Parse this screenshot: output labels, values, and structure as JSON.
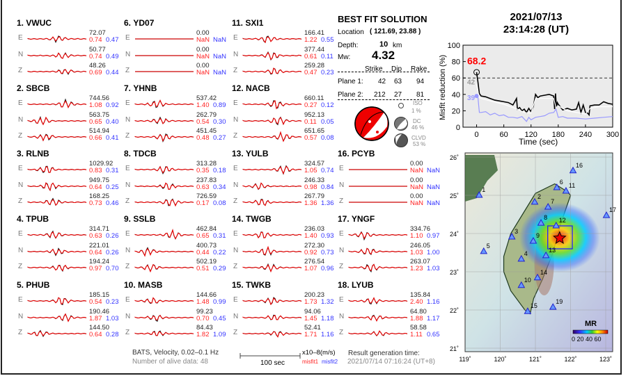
{
  "stations": [
    {
      "num": "1.",
      "name": "VWUC",
      "comps": [
        {
          "c": "E",
          "amp": "72.07",
          "m1": "0.74",
          "m2": "0.47"
        },
        {
          "c": "N",
          "amp": "50.77",
          "m1": "0.74",
          "m2": "0.49"
        },
        {
          "c": "Z",
          "amp": "48.26",
          "m1": "0.69",
          "m2": "0.44"
        }
      ]
    },
    {
      "num": "2.",
      "name": "SBCB",
      "comps": [
        {
          "c": "E",
          "amp": "744.56",
          "m1": "1.08",
          "m2": "0.92"
        },
        {
          "c": "N",
          "amp": "563.75",
          "m1": "0.65",
          "m2": "0.40"
        },
        {
          "c": "Z",
          "amp": "514.94",
          "m1": "0.66",
          "m2": "0.41"
        }
      ]
    },
    {
      "num": "3.",
      "name": "RLNB",
      "comps": [
        {
          "c": "E",
          "amp": "1029.92",
          "m1": "0.83",
          "m2": "0.31"
        },
        {
          "c": "N",
          "amp": "949.75",
          "m1": "0.64",
          "m2": "0.25"
        },
        {
          "c": "Z",
          "amp": "168.25",
          "m1": "0.73",
          "m2": "0.46"
        }
      ]
    },
    {
      "num": "4.",
      "name": "TPUB",
      "comps": [
        {
          "c": "E",
          "amp": "314.71",
          "m1": "0.63",
          "m2": "0.26"
        },
        {
          "c": "N",
          "amp": "221.01",
          "m1": "0.64",
          "m2": "0.26"
        },
        {
          "c": "Z",
          "amp": "194.24",
          "m1": "0.97",
          "m2": "0.70"
        }
      ]
    },
    {
      "num": "5.",
      "name": "PHUB",
      "comps": [
        {
          "c": "E",
          "amp": "185.15",
          "m1": "0.54",
          "m2": "0.23"
        },
        {
          "c": "N",
          "amp": "190.46",
          "m1": "1.87",
          "m2": "1.03"
        },
        {
          "c": "Z",
          "amp": "144.50",
          "m1": "0.64",
          "m2": "0.28"
        }
      ]
    },
    {
      "num": "6.",
      "name": "YD07",
      "comps": [
        {
          "c": "E",
          "amp": "0.00",
          "m1": "NaN",
          "m2": "NaN"
        },
        {
          "c": "N",
          "amp": "0.00",
          "m1": "NaN",
          "m2": "NaN"
        },
        {
          "c": "Z",
          "amp": "0.00",
          "m1": "NaN",
          "m2": "NaN"
        }
      ]
    },
    {
      "num": "7.",
      "name": "YHNB",
      "comps": [
        {
          "c": "E",
          "amp": "537.42",
          "m1": "1.40",
          "m2": "0.89"
        },
        {
          "c": "N",
          "amp": "262.79",
          "m1": "0.54",
          "m2": "0.30"
        },
        {
          "c": "Z",
          "amp": "451.45",
          "m1": "0.48",
          "m2": "0.27"
        }
      ]
    },
    {
      "num": "8.",
      "name": "TDCB",
      "comps": [
        {
          "c": "E",
          "amp": "313.28",
          "m1": "0.35",
          "m2": "0.18"
        },
        {
          "c": "N",
          "amp": "237.83",
          "m1": "0.63",
          "m2": "0.34"
        },
        {
          "c": "Z",
          "amp": "726.59",
          "m1": "0.17",
          "m2": "0.08"
        }
      ]
    },
    {
      "num": "9.",
      "name": "SSLB",
      "comps": [
        {
          "c": "E",
          "amp": "462.84",
          "m1": "0.65",
          "m2": "0.31"
        },
        {
          "c": "N",
          "amp": "400.73",
          "m1": "0.44",
          "m2": "0.22"
        },
        {
          "c": "Z",
          "amp": "502.19",
          "m1": "0.51",
          "m2": "0.29"
        }
      ]
    },
    {
      "num": "10.",
      "name": "MASB",
      "comps": [
        {
          "c": "E",
          "amp": "144.66",
          "m1": "1.48",
          "m2": "0.99"
        },
        {
          "c": "N",
          "amp": "99.23",
          "m1": "0.70",
          "m2": "0.45"
        },
        {
          "c": "Z",
          "amp": "84.43",
          "m1": "1.82",
          "m2": "1.09"
        }
      ]
    },
    {
      "num": "11.",
      "name": "SXI1",
      "comps": [
        {
          "c": "E",
          "amp": "166.41",
          "m1": "1.22",
          "m2": "0.55"
        },
        {
          "c": "N",
          "amp": "377.44",
          "m1": "0.61",
          "m2": "0.11"
        },
        {
          "c": "Z",
          "amp": "259.28",
          "m1": "0.47",
          "m2": "0.23"
        }
      ]
    },
    {
      "num": "12.",
      "name": "NACB",
      "comps": [
        {
          "c": "E",
          "amp": "660.11",
          "m1": "0.27",
          "m2": "0.12"
        },
        {
          "c": "N",
          "amp": "952.13",
          "m1": "0.11",
          "m2": "0.05"
        },
        {
          "c": "Z",
          "amp": "651.65",
          "m1": "0.57",
          "m2": "0.08"
        }
      ]
    },
    {
      "num": "13.",
      "name": "YULB",
      "comps": [
        {
          "c": "E",
          "amp": "324.57",
          "m1": "1.05",
          "m2": "0.74"
        },
        {
          "c": "N",
          "amp": "246.33",
          "m1": "0.98",
          "m2": "0.84"
        },
        {
          "c": "Z",
          "amp": "267.79",
          "m1": "1.36",
          "m2": "1.36"
        }
      ]
    },
    {
      "num": "14.",
      "name": "TWGB",
      "comps": [
        {
          "c": "E",
          "amp": "236.03",
          "m1": "1.40",
          "m2": "0.93"
        },
        {
          "c": "N",
          "amp": "272.30",
          "m1": "0.92",
          "m2": "0.73"
        },
        {
          "c": "Z",
          "amp": "276.54",
          "m1": "1.07",
          "m2": "0.96"
        }
      ]
    },
    {
      "num": "15.",
      "name": "TWKB",
      "comps": [
        {
          "c": "E",
          "amp": "200.23",
          "m1": "1.73",
          "m2": "1.32"
        },
        {
          "c": "N",
          "amp": "94.06",
          "m1": "1.45",
          "m2": "1.18"
        },
        {
          "c": "Z",
          "amp": "52.41",
          "m1": "1.71",
          "m2": "1.16"
        }
      ]
    },
    {
      "num": "16.",
      "name": "PCYB",
      "comps": [
        {
          "c": "E",
          "amp": "0.00",
          "m1": "NaN",
          "m2": "NaN"
        },
        {
          "c": "N",
          "amp": "0.00",
          "m1": "NaN",
          "m2": "NaN"
        },
        {
          "c": "Z",
          "amp": "0.00",
          "m1": "NaN",
          "m2": "NaN"
        }
      ]
    },
    {
      "num": "17.",
      "name": "YNGF",
      "comps": [
        {
          "c": "E",
          "amp": "334.76",
          "m1": "1.10",
          "m2": "0.97"
        },
        {
          "c": "N",
          "amp": "246.05",
          "m1": "1.03",
          "m2": "1.00"
        },
        {
          "c": "Z",
          "amp": "263.07",
          "m1": "1.23",
          "m2": "1.03"
        }
      ]
    },
    {
      "num": "18.",
      "name": "LYUB",
      "comps": [
        {
          "c": "E",
          "amp": "135.84",
          "m1": "2.40",
          "m2": "1.16"
        },
        {
          "c": "N",
          "amp": "64.80",
          "m1": "1.88",
          "m2": "1.17"
        },
        {
          "c": "Z",
          "amp": "58.58",
          "m1": "1.11",
          "m2": "0.65"
        }
      ]
    }
  ],
  "footer": {
    "filter": "BATS, Velocity, 0.02–0.1 Hz",
    "alive": "Number of alive data: 48",
    "scale_label": "100 sec",
    "units": "x10–8(m/s)",
    "misfit1": "misfit1",
    "misfit2": "misfit2",
    "gen_label": "Result generation time:",
    "gen_time": "2021/07/14 07:16:24 (UT+8)"
  },
  "solution": {
    "title": "BEST FIT SOLUTION",
    "location_label": "Location",
    "location": "( 121.69,  23.88 )",
    "depth_label": "Depth:",
    "depth": "10",
    "depth_unit": "km",
    "mw_label": "Mw:",
    "mw": "4.32",
    "headers": [
      "Strike",
      "Dip",
      "Rake"
    ],
    "planes": [
      {
        "label": "Plane 1:",
        "strike": "42",
        "dip": "63",
        "rake": "94"
      },
      {
        "label": "Plane 2:",
        "strike": "212",
        "dip": "27",
        "rake": "81"
      }
    ],
    "iso_label": "ISO",
    "iso_pct": "1  %",
    "dc_label": "DC",
    "dc_pct": "46 %",
    "clvd_label": "CLVD",
    "clvd_pct": "53 %"
  },
  "event": {
    "date": "2021/07/13",
    "time": "23:14:28  (UT)"
  },
  "chart_data": {
    "type": "line",
    "xlabel": "Time (sec)",
    "ylabel": "Misfit reduction (%)",
    "xlim": [
      -30,
      300
    ],
    "ylim": [
      0,
      100
    ],
    "xticks": [
      0,
      60,
      120,
      180,
      240,
      300
    ],
    "yticks": [
      0,
      20,
      40,
      60,
      80,
      100
    ],
    "threshold": 60,
    "best_value_label": "68.2",
    "label_gray": "42",
    "label_blue": "39",
    "series": [
      {
        "color": "#000000",
        "x": [
          0,
          3,
          6,
          10,
          20,
          30,
          40,
          50,
          60,
          70,
          80,
          88,
          90,
          95,
          100,
          105,
          110,
          115,
          120,
          125,
          130,
          135,
          140,
          150,
          160,
          170,
          172,
          174,
          176,
          178,
          180,
          190,
          200,
          210,
          220,
          225,
          230,
          235,
          240,
          245,
          248,
          250,
          260,
          270,
          280,
          290,
          300
        ],
        "y": [
          67,
          55,
          41,
          38,
          37,
          35,
          33,
          32,
          31,
          30,
          27,
          35,
          22,
          24,
          20,
          22,
          18,
          23,
          19,
          25,
          40,
          36,
          38,
          39,
          40,
          38,
          22,
          41,
          24,
          30,
          28,
          21,
          23,
          21,
          22,
          30,
          18,
          27,
          18,
          17,
          15,
          26,
          27,
          27,
          31,
          29,
          28
        ]
      },
      {
        "color": "#ffffff",
        "x": [
          0,
          6,
          10,
          30,
          60,
          90,
          105,
          120,
          130,
          150,
          170,
          175,
          180,
          200,
          240,
          250,
          270,
          300
        ],
        "y": [
          52,
          36,
          35,
          32,
          28,
          22,
          18,
          17,
          35,
          35,
          35,
          24,
          26,
          20,
          16,
          23,
          25,
          25
        ]
      },
      {
        "color": "#9999ff",
        "x": [
          0,
          3,
          6,
          10,
          20,
          30,
          40,
          50,
          60,
          70,
          80,
          90,
          100,
          110,
          115,
          120,
          130,
          140,
          150,
          160,
          170,
          175,
          180,
          190,
          200,
          220,
          240,
          260,
          280,
          300
        ],
        "y": [
          38,
          36,
          18,
          18,
          19,
          15,
          17,
          14,
          15,
          12,
          12,
          11,
          13,
          7,
          12,
          9,
          12,
          13,
          14,
          17,
          18,
          22,
          12,
          13,
          11,
          11,
          10,
          11,
          12,
          13
        ]
      }
    ]
  },
  "map": {
    "lon_ticks": [
      "119˚",
      "120˚",
      "121˚",
      "122˚",
      "123˚"
    ],
    "lat_ticks": [
      "26˚",
      "25˚",
      "24˚",
      "23˚",
      "22˚",
      "21˚"
    ],
    "epicenter": {
      "lon": 121.69,
      "lat": 23.88
    },
    "search_box": {
      "lon": [
        121.35,
        122.05
      ],
      "lat": [
        23.6,
        24.2
      ]
    },
    "stations": [
      {
        "label": "1",
        "lon": 119.4,
        "lat": 25.0
      },
      {
        "label": "2",
        "lon": 120.98,
        "lat": 24.82
      },
      {
        "label": "3",
        "lon": 120.33,
        "lat": 23.91
      },
      {
        "label": "4",
        "lon": 120.6,
        "lat": 23.33
      },
      {
        "label": "5",
        "lon": 119.53,
        "lat": 23.53
      },
      {
        "label": "6",
        "lon": 121.61,
        "lat": 25.2
      },
      {
        "label": "7",
        "lon": 121.36,
        "lat": 24.69
      },
      {
        "label": "8",
        "lon": 121.16,
        "lat": 24.27
      },
      {
        "label": "9",
        "lon": 120.94,
        "lat": 23.8
      },
      {
        "label": "10",
        "lon": 120.6,
        "lat": 22.64
      },
      {
        "label": "11",
        "lon": 121.87,
        "lat": 25.11
      },
      {
        "label": "12",
        "lon": 121.59,
        "lat": 24.2
      },
      {
        "label": "13",
        "lon": 121.3,
        "lat": 23.42
      },
      {
        "label": "14",
        "lon": 121.06,
        "lat": 22.84
      },
      {
        "label": "15",
        "lon": 120.78,
        "lat": 21.96
      },
      {
        "label": "16",
        "lon": 122.07,
        "lat": 25.64
      },
      {
        "label": "17",
        "lon": 123.02,
        "lat": 24.47
      },
      {
        "label": "19",
        "lon": 121.5,
        "lat": 22.07
      }
    ],
    "colorbar_title": "MR",
    "colorbar_ticks": "0 20 40 60"
  }
}
